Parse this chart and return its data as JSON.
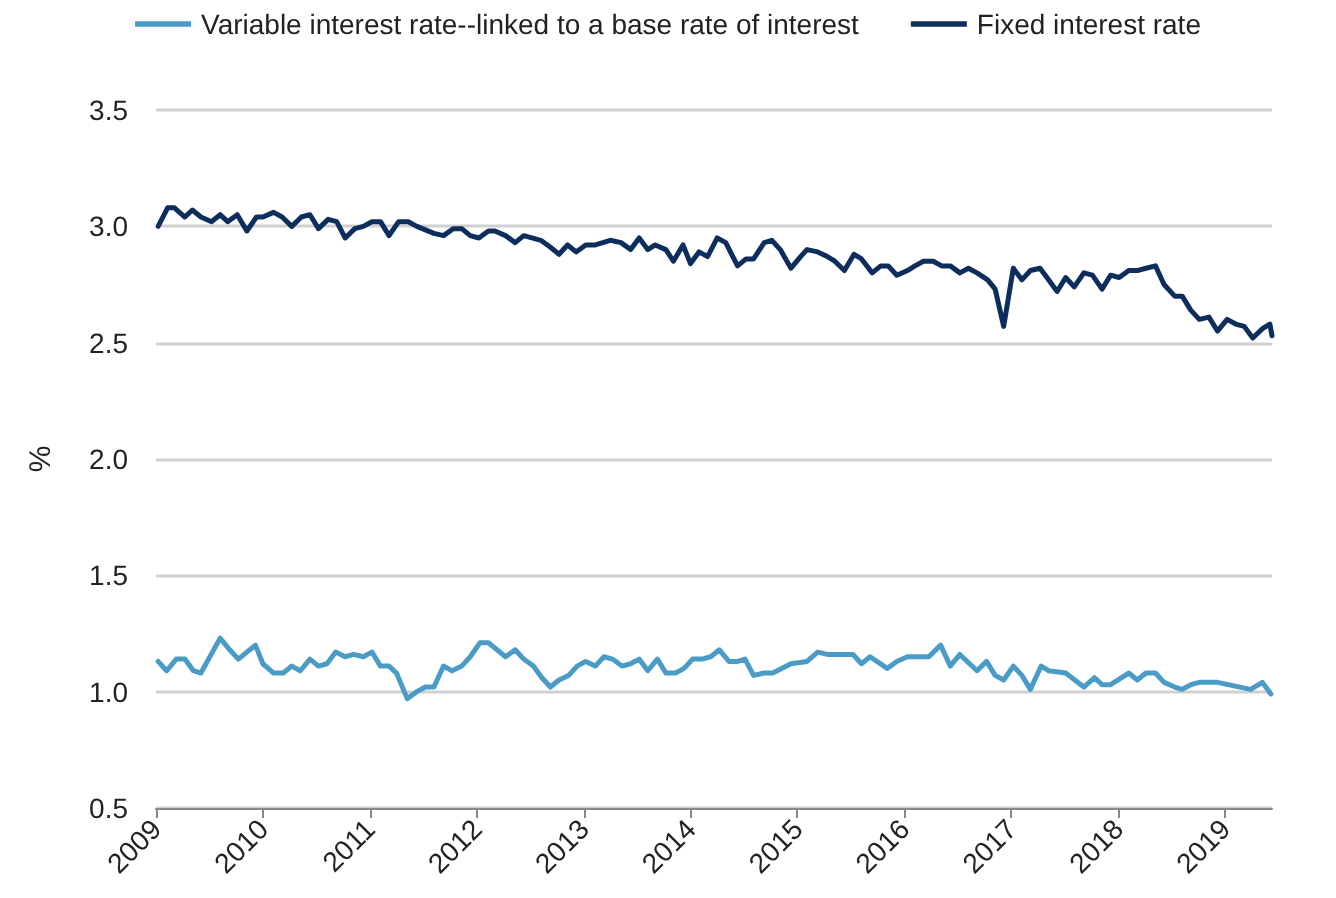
{
  "chart_data": {
    "type": "line",
    "ylabel": "%",
    "legend": "top",
    "grid": "y",
    "marker": "none",
    "line_style": "solid",
    "xlim": [
      2009,
      2019.44
    ],
    "xticks": [
      2009,
      2010,
      2011,
      2012,
      2013,
      2014,
      2015,
      2016,
      2017,
      2018,
      2019
    ],
    "ylim": [
      0.5,
      3.5
    ],
    "yticks": [
      0.5,
      {
        "value": 1,
        "label": "1.0"
      },
      1.5,
      {
        "value": 2,
        "label": "2.0"
      },
      2.5,
      {
        "value": 3,
        "label": "3.0"
      },
      3.5
    ],
    "series": [
      {
        "name": "Variable interest rate--linked to a base rate of interest",
        "color": "#4a9cc7",
        "x": [
          2009.02,
          2009.1,
          2009.19,
          2009.27,
          2009.35,
          2009.42,
          2009.6,
          2009.69,
          2009.77,
          2009.85,
          2009.93,
          2010.0,
          2010.1,
          2010.19,
          2010.27,
          2010.35,
          2010.44,
          2010.52,
          2010.6,
          2010.68,
          2010.77,
          2010.85,
          2010.94,
          2011.02,
          2011.1,
          2011.18,
          2011.25,
          2011.35,
          2011.44,
          2011.52,
          2011.6,
          2011.69,
          2011.77,
          2011.86,
          2011.94,
          2012.03,
          2012.11,
          2012.19,
          2012.27,
          2012.36,
          2012.44,
          2012.53,
          2012.61,
          2012.69,
          2012.77,
          2012.86,
          2012.94,
          2013.02,
          2013.11,
          2013.19,
          2013.27,
          2013.36,
          2013.44,
          2013.52,
          2013.6,
          2013.69,
          2013.77,
          2013.86,
          2013.94,
          2014.02,
          2014.11,
          2014.19,
          2014.27,
          2014.36,
          2014.44,
          2014.51,
          2014.59,
          2014.69,
          2014.77,
          2014.94,
          2015.09,
          2015.19,
          2015.28,
          2015.52,
          2015.6,
          2015.68,
          2015.84,
          2015.93,
          2016.03,
          2016.23,
          2016.34,
          2016.43,
          2016.52,
          2016.68,
          2016.77,
          2016.85,
          2016.93,
          2017.02,
          2017.1,
          2017.18,
          2017.28,
          2017.35,
          2017.51,
          2017.68,
          2017.78,
          2017.85,
          2017.93,
          2018.1,
          2018.18,
          2018.26,
          2018.35,
          2018.43,
          2018.53,
          2018.6,
          2018.68,
          2018.76,
          2018.93,
          2019.24,
          2019.35,
          2019.43
        ],
        "values": [
          1.13,
          1.09,
          1.14,
          1.14,
          1.09,
          1.08,
          1.23,
          1.18,
          1.14,
          1.17,
          1.2,
          1.12,
          1.08,
          1.08,
          1.11,
          1.09,
          1.14,
          1.11,
          1.12,
          1.17,
          1.15,
          1.16,
          1.15,
          1.17,
          1.11,
          1.11,
          1.08,
          0.97,
          1.0,
          1.02,
          1.02,
          1.11,
          1.09,
          1.11,
          1.15,
          1.21,
          1.21,
          1.18,
          1.15,
          1.18,
          1.14,
          1.11,
          1.06,
          1.02,
          1.05,
          1.07,
          1.11,
          1.13,
          1.11,
          1.15,
          1.14,
          1.11,
          1.12,
          1.14,
          1.09,
          1.14,
          1.08,
          1.08,
          1.1,
          1.14,
          1.14,
          1.15,
          1.18,
          1.13,
          1.13,
          1.14,
          1.07,
          1.08,
          1.08,
          1.12,
          1.13,
          1.17,
          1.16,
          1.16,
          1.12,
          1.15,
          1.1,
          1.13,
          1.15,
          1.15,
          1.2,
          1.11,
          1.16,
          1.09,
          1.13,
          1.07,
          1.05,
          1.11,
          1.07,
          1.01,
          1.11,
          1.09,
          1.08,
          1.02,
          1.06,
          1.03,
          1.03,
          1.08,
          1.05,
          1.08,
          1.08,
          1.04,
          1.02,
          1.01,
          1.03,
          1.04,
          1.04,
          1.01,
          1.04,
          0.99
        ]
      },
      {
        "name": "Fixed interest rate",
        "color": "#0d2e5c",
        "x": [
          2009.02,
          2009.11,
          2009.17,
          2009.27,
          2009.34,
          2009.42,
          2009.52,
          2009.6,
          2009.67,
          2009.76,
          2009.85,
          2009.94,
          2010.0,
          2010.1,
          2010.18,
          2010.27,
          2010.36,
          2010.44,
          2010.52,
          2010.61,
          2010.69,
          2010.77,
          2010.86,
          2010.94,
          2011.02,
          2011.1,
          2011.18,
          2011.27,
          2011.36,
          2011.44,
          2011.6,
          2011.69,
          2011.78,
          2011.86,
          2011.94,
          2012.02,
          2012.11,
          2012.17,
          2012.27,
          2012.36,
          2012.44,
          2012.6,
          2012.69,
          2012.77,
          2012.85,
          2012.93,
          2013.02,
          2013.11,
          2013.25,
          2013.35,
          2013.44,
          2013.52,
          2013.6,
          2013.67,
          2013.77,
          2013.84,
          2013.93,
          2014.0,
          2014.08,
          2014.16,
          2014.25,
          2014.33,
          2014.44,
          2014.52,
          2014.59,
          2014.69,
          2014.76,
          2014.84,
          2014.94,
          2015.03,
          2015.09,
          2015.19,
          2015.28,
          2015.35,
          2015.44,
          2015.53,
          2015.6,
          2015.7,
          2015.78,
          2015.85,
          2015.93,
          2016.03,
          2016.1,
          2016.18,
          2016.27,
          2016.35,
          2016.43,
          2016.52,
          2016.6,
          2016.68,
          2016.78,
          2016.85,
          2016.93,
          2017.02,
          2017.1,
          2017.18,
          2017.27,
          2017.35,
          2017.43,
          2017.51,
          2017.59,
          2017.68,
          2017.76,
          2017.85,
          2017.93,
          2018.01,
          2018.1,
          2018.18,
          2018.26,
          2018.35,
          2018.43,
          2018.53,
          2018.6,
          2018.68,
          2018.76,
          2018.85,
          2018.93,
          2019.02,
          2019.1,
          2019.18,
          2019.26,
          2019.35,
          2019.42,
          2019.44
        ],
        "values": [
          3.0,
          3.08,
          3.08,
          3.04,
          3.07,
          3.04,
          3.02,
          3.05,
          3.02,
          3.05,
          2.98,
          3.04,
          3.04,
          3.06,
          3.04,
          3.0,
          3.04,
          3.05,
          2.99,
          3.03,
          3.02,
          2.95,
          2.99,
          3.0,
          3.02,
          3.02,
          2.96,
          3.02,
          3.02,
          3.0,
          2.97,
          2.96,
          2.99,
          2.99,
          2.96,
          2.95,
          2.98,
          2.98,
          2.96,
          2.93,
          2.96,
          2.94,
          2.91,
          2.88,
          2.92,
          2.89,
          2.92,
          2.92,
          2.94,
          2.93,
          2.9,
          2.95,
          2.9,
          2.92,
          2.9,
          2.85,
          2.92,
          2.84,
          2.89,
          2.87,
          2.95,
          2.93,
          2.83,
          2.86,
          2.86,
          2.93,
          2.94,
          2.9,
          2.82,
          2.87,
          2.9,
          2.89,
          2.87,
          2.85,
          2.81,
          2.88,
          2.86,
          2.8,
          2.83,
          2.83,
          2.79,
          2.81,
          2.83,
          2.85,
          2.85,
          2.83,
          2.83,
          2.8,
          2.82,
          2.8,
          2.77,
          2.73,
          2.57,
          2.82,
          2.77,
          2.81,
          2.82,
          2.77,
          2.72,
          2.78,
          2.74,
          2.8,
          2.79,
          2.73,
          2.79,
          2.78,
          2.81,
          2.81,
          2.82,
          2.83,
          2.75,
          2.7,
          2.7,
          2.64,
          2.6,
          2.61,
          2.55,
          2.6,
          2.58,
          2.57,
          2.52,
          2.56,
          2.58,
          2.53
        ]
      }
    ]
  }
}
